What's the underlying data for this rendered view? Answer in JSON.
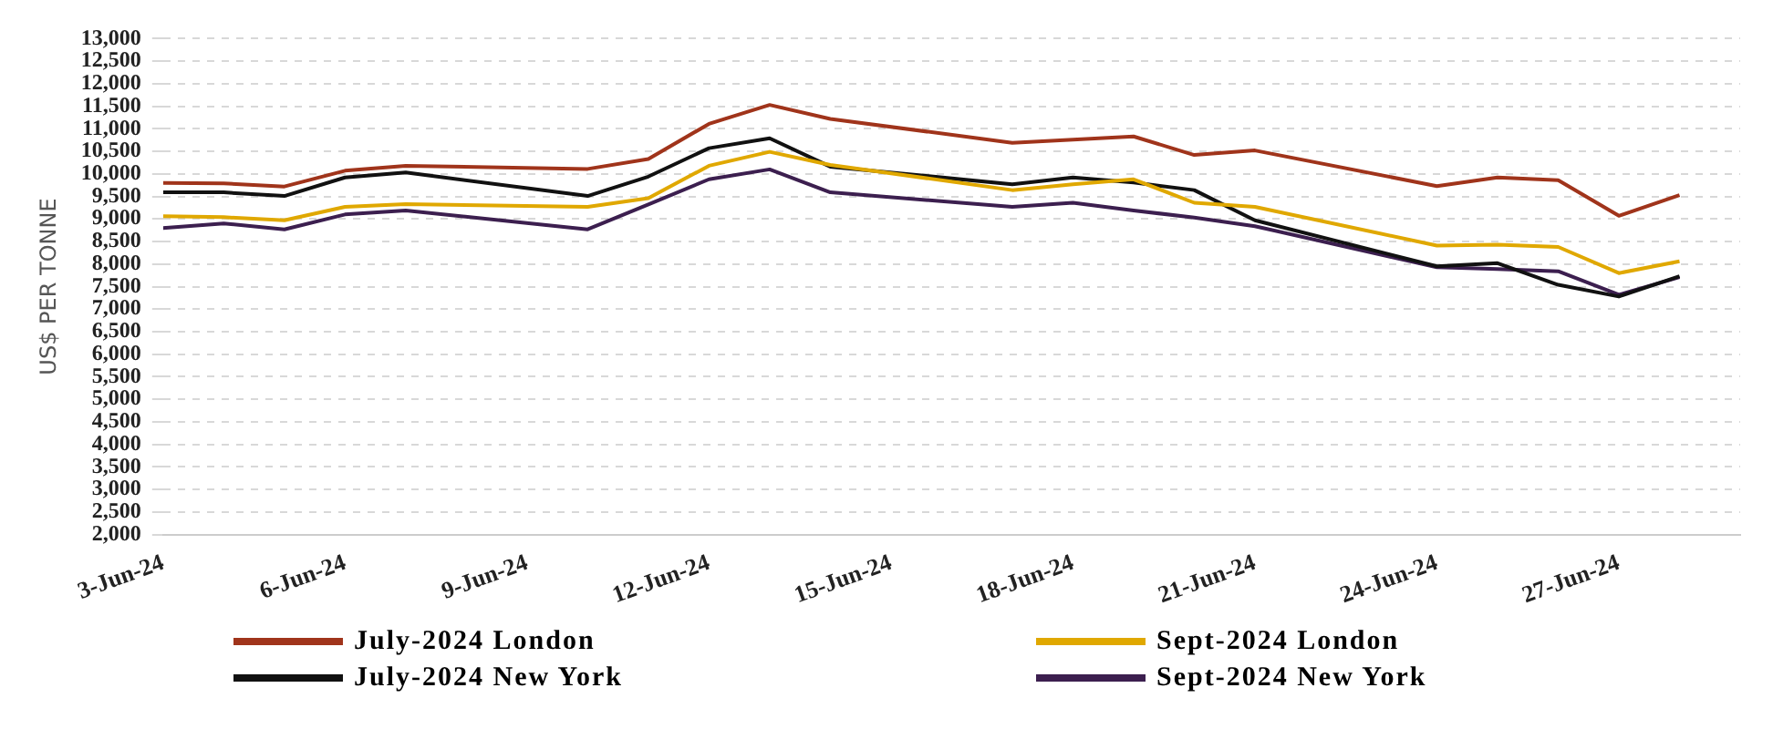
{
  "chart_data": {
    "type": "line",
    "ylabel": "US$ PER TONNE",
    "x": [
      "2024-06-03",
      "2024-06-04",
      "2024-06-05",
      "2024-06-06",
      "2024-06-07",
      "2024-06-10",
      "2024-06-11",
      "2024-06-12",
      "2024-06-13",
      "2024-06-14",
      "2024-06-17",
      "2024-06-18",
      "2024-06-19",
      "2024-06-20",
      "2024-06-21",
      "2024-06-24",
      "2024-06-25",
      "2024-06-26",
      "2024-06-27",
      "2024-06-28"
    ],
    "series": [
      {
        "name": "July-2024 London",
        "color": "#a0341b",
        "values": [
          9800,
          9790,
          9720,
          10070,
          10180,
          10110,
          10330,
          11110,
          11530,
          11220,
          10690,
          10760,
          10830,
          10420,
          10520,
          9730,
          9920,
          9860,
          9070,
          9530
        ]
      },
      {
        "name": "Sept-2024 London",
        "color": "#e0a800",
        "values": [
          9060,
          9040,
          8970,
          9270,
          9330,
          9270,
          9460,
          10180,
          10490,
          10200,
          9640,
          9770,
          9880,
          9360,
          9270,
          8410,
          8430,
          8380,
          7800,
          8060
        ]
      },
      {
        "name": "July-2024 New York",
        "color": "#111111",
        "values": [
          9590,
          9590,
          9510,
          9920,
          10030,
          9510,
          9940,
          10570,
          10790,
          10160,
          9770,
          9920,
          9810,
          9640,
          8970,
          7950,
          8020,
          7540,
          7280,
          7730
        ]
      },
      {
        "name": "Sept-2024 New York",
        "color": "#3c1f4f",
        "values": [
          8800,
          8900,
          8770,
          9100,
          9190,
          8770,
          9320,
          9880,
          10100,
          9590,
          9270,
          9360,
          9190,
          9030,
          8840,
          7930,
          7890,
          7840,
          7320,
          7710
        ]
      }
    ],
    "xlim": [
      "2024-06-03",
      "2024-06-29"
    ],
    "xticks": [
      {
        "value": "2024-06-03",
        "label": "3-Jun-24"
      },
      {
        "value": "2024-06-06",
        "label": "6-Jun-24"
      },
      {
        "value": "2024-06-09",
        "label": "9-Jun-24"
      },
      {
        "value": "2024-06-12",
        "label": "12-Jun-24"
      },
      {
        "value": "2024-06-15",
        "label": "15-Jun-24"
      },
      {
        "value": "2024-06-18",
        "label": "18-Jun-24"
      },
      {
        "value": "2024-06-21",
        "label": "21-Jun-24"
      },
      {
        "value": "2024-06-24",
        "label": "24-Jun-24"
      },
      {
        "value": "2024-06-27",
        "label": "27-Jun-24"
      }
    ],
    "ylim": [
      2000,
      13000
    ],
    "yticks": [
      {
        "value": 2000,
        "label": "2,000"
      },
      {
        "value": 2500,
        "label": "2,500"
      },
      {
        "value": 3000,
        "label": "3,000"
      },
      {
        "value": 3500,
        "label": "3,500"
      },
      {
        "value": 4000,
        "label": "4,000"
      },
      {
        "value": 4500,
        "label": "4,500"
      },
      {
        "value": 5000,
        "label": "5,000"
      },
      {
        "value": 5500,
        "label": "5,500"
      },
      {
        "value": 6000,
        "label": "6,000"
      },
      {
        "value": 6500,
        "label": "6,500"
      },
      {
        "value": 7000,
        "label": "7,000"
      },
      {
        "value": 7500,
        "label": "7,500"
      },
      {
        "value": 8000,
        "label": "8,000"
      },
      {
        "value": 8500,
        "label": "8,500"
      },
      {
        "value": 9000,
        "label": "9,000"
      },
      {
        "value": 9500,
        "label": "9,500"
      },
      {
        "value": 10000,
        "label": "10,000"
      },
      {
        "value": 10500,
        "label": "10,500"
      },
      {
        "value": 11000,
        "label": "11,000"
      },
      {
        "value": 11500,
        "label": "11,500"
      },
      {
        "value": 12000,
        "label": "12,000"
      },
      {
        "value": 12500,
        "label": "12,500"
      },
      {
        "value": 13000,
        "label": "13,000"
      }
    ],
    "grid": "y",
    "legend": "bottom",
    "marker": "none",
    "line_style": "solid"
  }
}
